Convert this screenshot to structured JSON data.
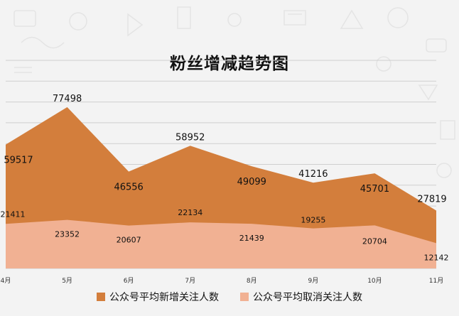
{
  "chart_data": {
    "type": "area",
    "title": "粉丝增减趋势图",
    "categories": [
      "4月",
      "5月",
      "6月",
      "7月",
      "8月",
      "9月",
      "10月",
      "11月"
    ],
    "series": [
      {
        "name": "公众号平均新增关注人数",
        "values": [
          59517,
          77498,
          46556,
          58952,
          49099,
          41216,
          45701,
          27819
        ],
        "color": "#d37e3c"
      },
      {
        "name": "公众号平均取消关注人数",
        "values": [
          21411,
          23352,
          20607,
          22134,
          21439,
          19255,
          20704,
          12142
        ],
        "color": "#f1b193"
      }
    ],
    "stacked": false,
    "ylim": [
      0,
      100000
    ],
    "grid": true,
    "legend_position": "bottom"
  },
  "colors": {
    "background": "#f3f3f3",
    "grid_line": "#cfcfcf"
  }
}
